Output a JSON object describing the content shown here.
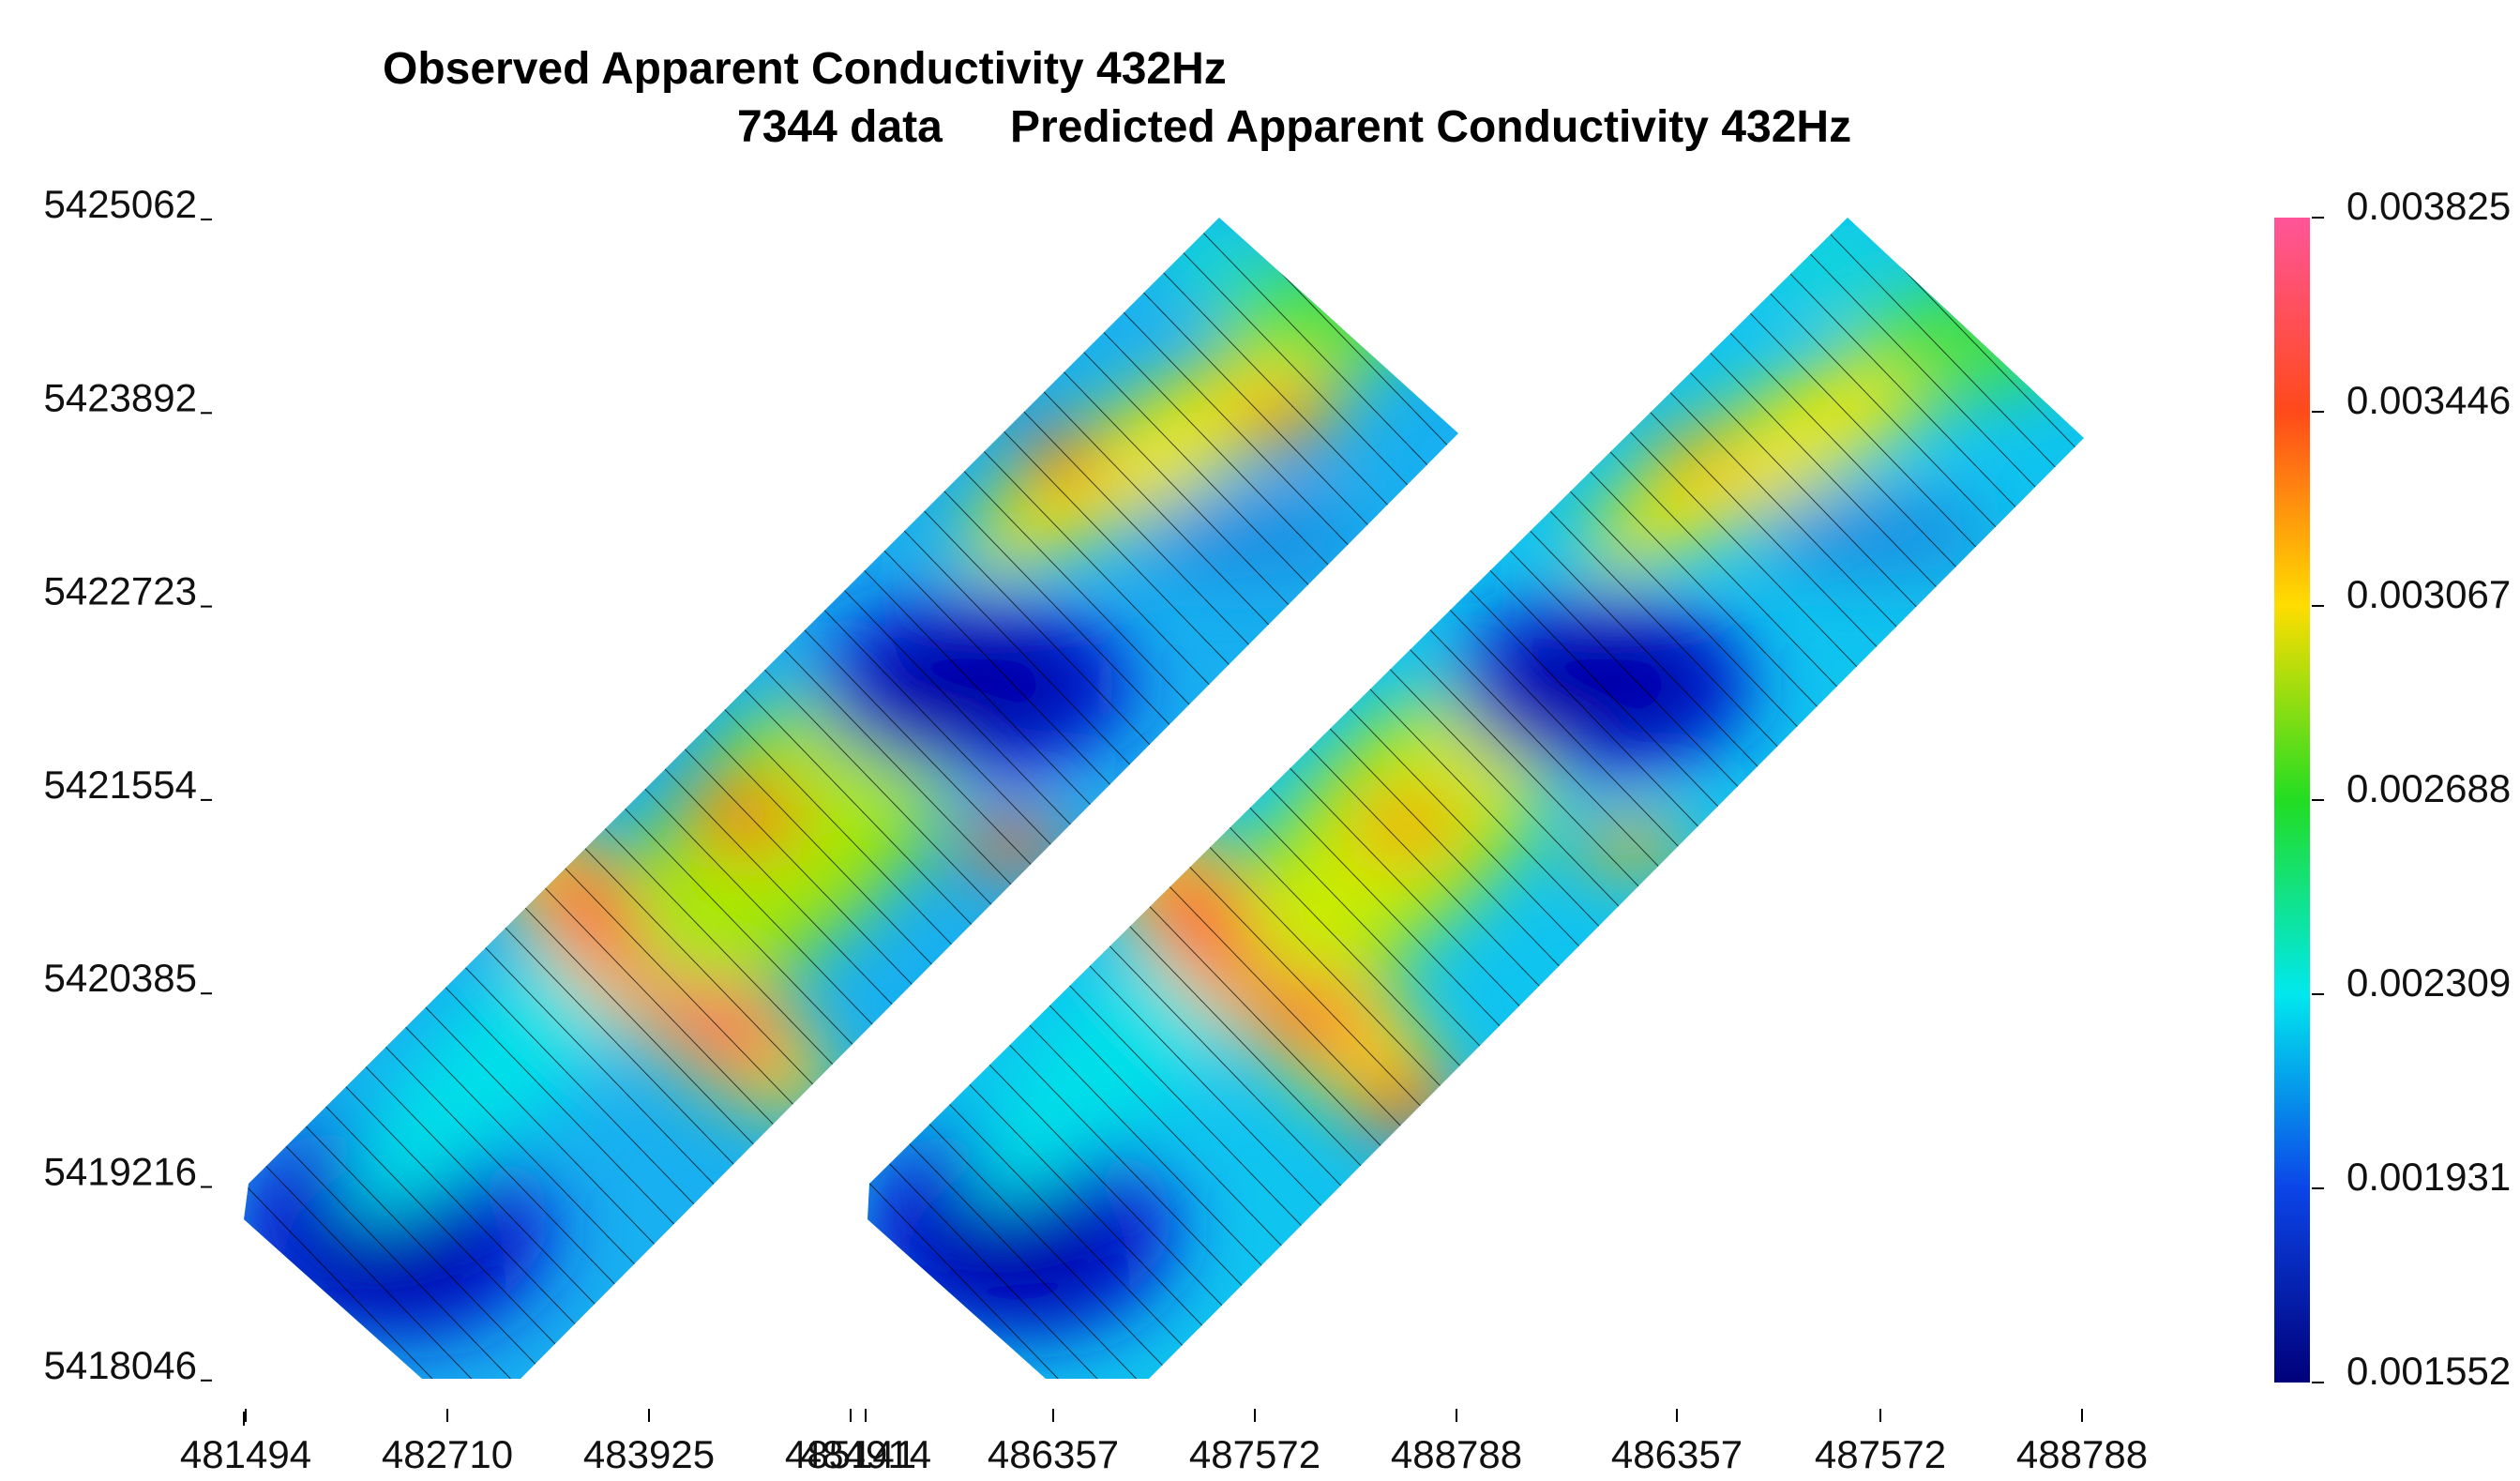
{
  "titles": {
    "observed": "Observed Apparent Conductivity 432Hz",
    "count": "7344 data",
    "predicted": "Predicted Apparent Conductivity 432Hz"
  },
  "chart_data": {
    "type": "heatmap",
    "panels": [
      {
        "name": "Observed Apparent Conductivity 432Hz",
        "x_ticks": [
          "481494",
          "482710",
          "483925",
          "485141"
        ]
      },
      {
        "name": "Predicted Apparent Conductivity 432Hz",
        "x_ticks": [
          "484914",
          "486357",
          "487572",
          "488788",
          "486357",
          "487572",
          "488788"
        ]
      }
    ],
    "y_ticks": [
      "5425062",
      "5423892",
      "5422723",
      "5421554",
      "5420385",
      "5419216",
      "5418046"
    ],
    "colorbar": {
      "ticks": [
        "0.003825",
        "0.003446",
        "0.003067",
        "0.002688",
        "0.002309",
        "0.001931",
        "0.001552"
      ],
      "colors": [
        "#ff5599",
        "#ff4a1a",
        "#ffdd00",
        "#22dd22",
        "#00e8ee",
        "#0b45e8",
        "#00007a"
      ]
    }
  }
}
